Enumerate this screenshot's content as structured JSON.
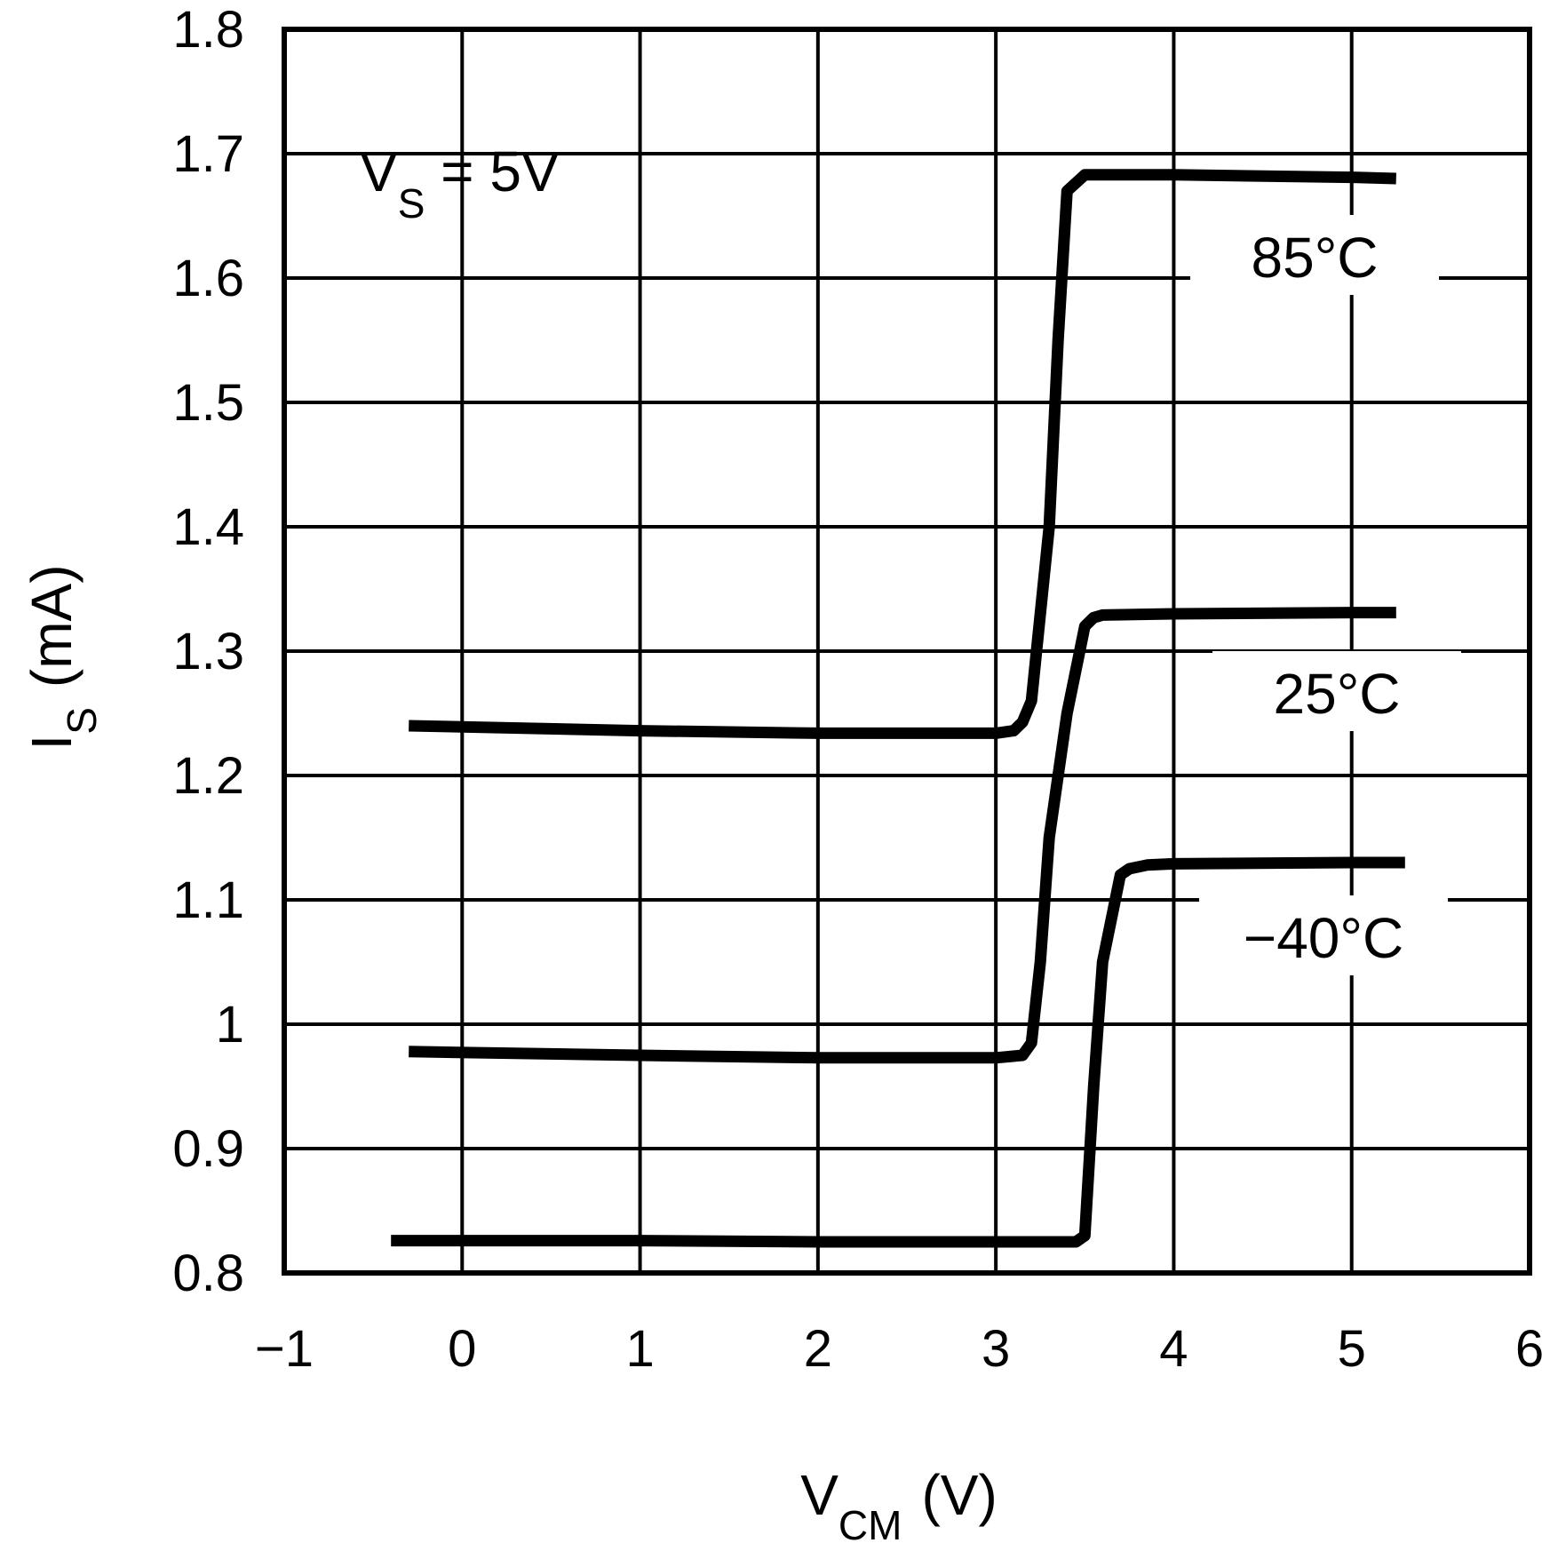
{
  "chart_data": {
    "type": "line",
    "xlabel": {
      "main": "V",
      "sub": "CM",
      "unit": "(V)"
    },
    "ylabel": {
      "main": "I",
      "sub": "S",
      "unit": "(mA)"
    },
    "xlim": [
      -1,
      6
    ],
    "ylim": [
      0.8,
      1.8
    ],
    "xticks": [
      "-1",
      "0",
      "1",
      "2",
      "3",
      "4",
      "5",
      "6"
    ],
    "yticks": [
      "0.8",
      "0.9",
      "1",
      "1.1",
      "1.2",
      "1.3",
      "1.4",
      "1.5",
      "1.6",
      "1.7",
      "1.8"
    ],
    "grid": true,
    "annotation": {
      "main": "V",
      "sub": "S",
      "rest": " = 5V"
    },
    "series": [
      {
        "name": "85°C",
        "x": [
          -0.3,
          1.0,
          2.0,
          3.0,
          3.1,
          3.15,
          3.2,
          3.3,
          3.35,
          3.4,
          3.5,
          4.0,
          5.0,
          5.25
        ],
        "y": [
          1.24,
          1.236,
          1.234,
          1.234,
          1.236,
          1.243,
          1.26,
          1.4,
          1.55,
          1.67,
          1.683,
          1.683,
          1.681,
          1.68
        ]
      },
      {
        "name": "25°C",
        "x": [
          -0.3,
          1.0,
          2.0,
          3.0,
          3.15,
          3.2,
          3.25,
          3.3,
          3.4,
          3.5,
          3.55,
          3.6,
          4.0,
          5.0,
          5.25
        ],
        "y": [
          0.978,
          0.975,
          0.973,
          0.973,
          0.975,
          0.985,
          1.05,
          1.15,
          1.25,
          1.32,
          1.327,
          1.329,
          1.33,
          1.331,
          1.331
        ]
      },
      {
        "name": "-40°C",
        "x": [
          -0.4,
          1.0,
          2.0,
          3.0,
          3.45,
          3.5,
          3.55,
          3.6,
          3.7,
          3.75,
          3.85,
          4.0,
          5.0,
          5.3
        ],
        "y": [
          0.826,
          0.826,
          0.825,
          0.825,
          0.825,
          0.83,
          0.95,
          1.05,
          1.12,
          1.125,
          1.128,
          1.129,
          1.13,
          1.13
        ]
      }
    ]
  }
}
